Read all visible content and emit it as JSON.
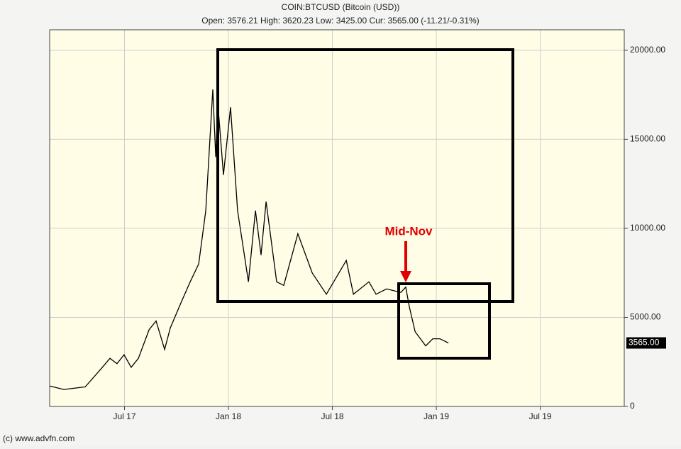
{
  "chart_data": {
    "type": "line",
    "title": "COIN:BTCUSD (Bitcoin (USD))",
    "subtitle": "Open: 3576.21 High: 3620.23 Low: 3425.00 Cur: 3565.00 (-11.21/-0.31%)",
    "annotation": "Mid-Nov",
    "source": "(c) www.advfn.com",
    "current_price": {
      "value": 3565,
      "label": "3565.00"
    },
    "color": "#000000",
    "grid": true,
    "x": [
      2017.14,
      2017.208,
      2017.311,
      2017.379,
      2017.43,
      2017.464,
      2017.498,
      2017.532,
      2017.567,
      2017.618,
      2017.652,
      2017.693,
      2017.72,
      2017.771,
      2017.816,
      2017.857,
      2017.891,
      2017.925,
      2017.939,
      2017.949,
      2017.976,
      2018.01,
      2018.044,
      2018.096,
      2018.13,
      2018.157,
      2018.181,
      2018.232,
      2018.266,
      2018.334,
      2018.403,
      2018.471,
      2018.567,
      2018.601,
      2018.676,
      2018.71,
      2018.761,
      2018.829,
      2018.853,
      2018.87,
      2018.898,
      2018.949,
      2018.983,
      2019.017,
      2019.058
    ],
    "values": [
      1150,
      950,
      1100,
      2000,
      2700,
      2400,
      2900,
      2200,
      2700,
      4300,
      4800,
      3200,
      4400,
      5800,
      7000,
      8000,
      11000,
      17800,
      14000,
      17000,
      13000,
      16800,
      11000,
      7000,
      11000,
      8500,
      11500,
      7000,
      6800,
      9700,
      7500,
      6300,
      8200,
      6300,
      7000,
      6300,
      6600,
      6400,
      6700,
      5600,
      4200,
      3400,
      3800,
      3800,
      3565
    ],
    "xlim": [
      2017.14,
      2019.904
    ],
    "xticks": [
      {
        "value": 2017.5,
        "label": "Jul 17"
      },
      {
        "value": 2018.0,
        "label": "Jan 18"
      },
      {
        "value": 2018.5,
        "label": "Jul 18"
      },
      {
        "value": 2019.0,
        "label": "Jan 19"
      },
      {
        "value": 2019.5,
        "label": "Jul 19"
      }
    ],
    "ylim": [
      0,
      21150
    ],
    "yticks": [
      0,
      {
        "value": 5000,
        "label": "5000.00"
      },
      {
        "value": 10000,
        "label": "10000.00"
      },
      {
        "value": 15000,
        "label": "15000.00"
      },
      {
        "value": 20000,
        "label": "20000.00"
      }
    ]
  }
}
